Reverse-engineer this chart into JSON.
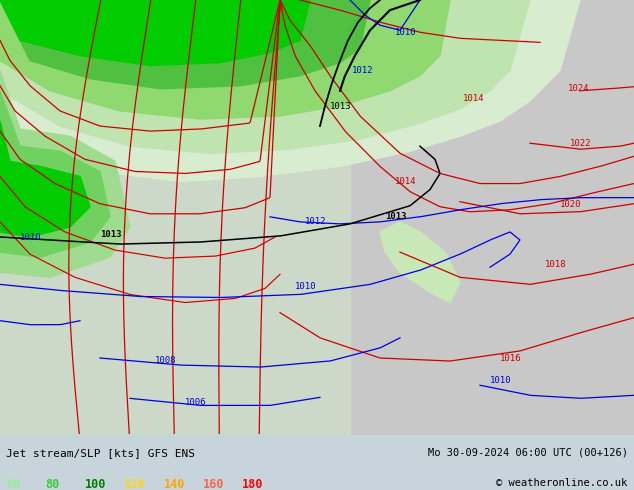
{
  "title_left": "Jet stream/SLP [kts] GFS ENS",
  "title_right": "Mo 30-09-2024 06:00 UTC (00+126)",
  "copyright": "© weatheronline.co.uk",
  "legend_values": [
    "60",
    "80",
    "100",
    "120",
    "140",
    "160",
    "180"
  ],
  "legend_colors": [
    "#90EE90",
    "#32CD32",
    "#008000",
    "#FFD700",
    "#FFA500",
    "#FF6347",
    "#FF0000"
  ],
  "bg_color": "#c8d4dc",
  "map_bg_left": "#c8dcc0",
  "map_bg_right": "#c8c8c8",
  "pale_green": "#d8ecd0",
  "mid_green": "#a0d890",
  "bright_green": "#00cc00",
  "fig_width": 6.34,
  "fig_height": 4.9,
  "dpi": 100
}
